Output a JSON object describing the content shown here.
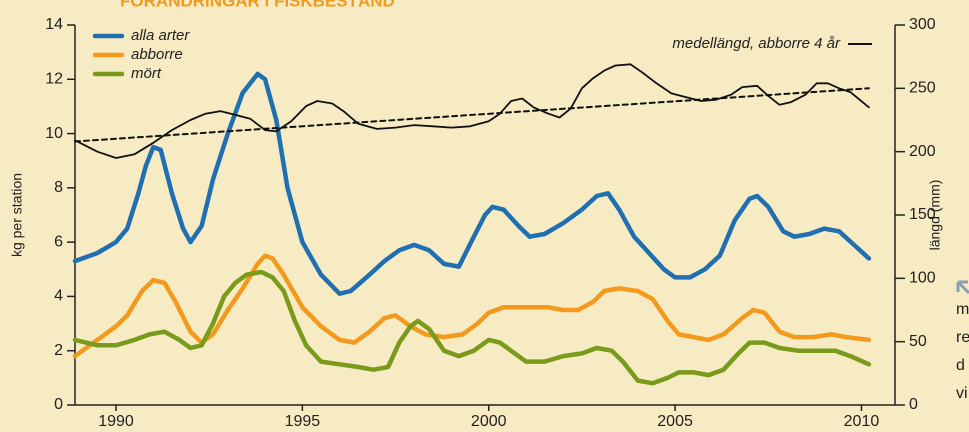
{
  "chart_data": {
    "type": "line",
    "title": "FÖRÄNDRINGAR I FISKBESTÅND",
    "y_label": "kg per station",
    "y2_label": "längd (mm)",
    "xlim": [
      1988.9,
      2010.9
    ],
    "xticks": [
      1990,
      1995,
      2000,
      2005,
      2010
    ],
    "ylim": [
      0,
      14
    ],
    "yticks": [
      0,
      2,
      4,
      6,
      8,
      10,
      12,
      14
    ],
    "y2lim": [
      0,
      300
    ],
    "y2ticks": [
      0,
      50,
      100,
      150,
      200,
      250,
      300
    ],
    "series": [
      {
        "name": "alla arter",
        "color": "#1f6fb2",
        "x": [
          1988.9,
          1989.5,
          1990,
          1990.3,
          1990.6,
          1990.8,
          1991,
          1991.2,
          1991.5,
          1991.8,
          1992,
          1992.3,
          1992.6,
          1993,
          1993.4,
          1993.8,
          1994,
          1994.3,
          1994.6,
          1995,
          1995.5,
          1996,
          1996.3,
          1996.8,
          1997.2,
          1997.6,
          1998,
          1998.4,
          1998.8,
          1999.2,
          1999.6,
          1999.9,
          2000.1,
          2000.4,
          2000.8,
          2001.1,
          2001.5,
          2002,
          2002.5,
          2002.9,
          2003.2,
          2003.5,
          2003.9,
          2004.3,
          2004.7,
          2005,
          2005.4,
          2005.8,
          2006.2,
          2006.6,
          2007,
          2007.2,
          2007.5,
          2007.9,
          2008.2,
          2008.6,
          2009,
          2009.4,
          2009.8,
          2010.2
        ],
        "values": [
          5.3,
          5.6,
          6.0,
          6.5,
          7.8,
          8.8,
          9.5,
          9.4,
          7.8,
          6.5,
          6.0,
          6.6,
          8.3,
          10.0,
          11.5,
          12.2,
          12.0,
          10.5,
          8.0,
          6.0,
          4.8,
          4.1,
          4.2,
          4.8,
          5.3,
          5.7,
          5.9,
          5.7,
          5.2,
          5.1,
          6.2,
          7.0,
          7.3,
          7.2,
          6.6,
          6.2,
          6.3,
          6.7,
          7.2,
          7.7,
          7.8,
          7.2,
          6.2,
          5.6,
          5.0,
          4.7,
          4.7,
          5.0,
          5.5,
          6.8,
          7.6,
          7.7,
          7.3,
          6.4,
          6.2,
          6.3,
          6.5,
          6.4,
          5.9,
          5.4
        ]
      },
      {
        "name": "abborre",
        "color": "#f39a1e",
        "x": [
          1988.9,
          1989.5,
          1990,
          1990.3,
          1990.7,
          1991,
          1991.3,
          1991.6,
          1992,
          1992.3,
          1992.6,
          1993,
          1993.4,
          1993.8,
          1994,
          1994.2,
          1994.5,
          1995,
          1995.5,
          1996,
          1996.4,
          1996.8,
          1997.2,
          1997.5,
          1997.9,
          1998.3,
          1998.8,
          1999.3,
          1999.7,
          2000,
          2000.4,
          2001,
          2001.6,
          2002,
          2002.4,
          2002.8,
          2003.1,
          2003.5,
          2004,
          2004.4,
          2004.8,
          2005.1,
          2005.5,
          2005.9,
          2006.3,
          2006.8,
          2007.1,
          2007.4,
          2007.8,
          2008.2,
          2008.7,
          2009.2,
          2009.6,
          2010.2
        ],
        "values": [
          1.8,
          2.4,
          2.9,
          3.3,
          4.2,
          4.6,
          4.5,
          3.8,
          2.7,
          2.3,
          2.6,
          3.5,
          4.3,
          5.2,
          5.5,
          5.4,
          4.8,
          3.6,
          2.9,
          2.4,
          2.3,
          2.7,
          3.2,
          3.3,
          2.9,
          2.6,
          2.5,
          2.6,
          3.0,
          3.4,
          3.6,
          3.6,
          3.6,
          3.5,
          3.5,
          3.8,
          4.2,
          4.3,
          4.2,
          3.9,
          3.1,
          2.6,
          2.5,
          2.4,
          2.6,
          3.2,
          3.5,
          3.4,
          2.7,
          2.5,
          2.5,
          2.6,
          2.5,
          2.4
        ]
      },
      {
        "name": "mört",
        "color": "#7a9a1c",
        "x": [
          1988.9,
          1989.5,
          1990,
          1990.5,
          1990.9,
          1991.3,
          1991.7,
          1992,
          1992.3,
          1992.6,
          1992.9,
          1993.2,
          1993.5,
          1993.9,
          1994.2,
          1994.5,
          1994.8,
          1995.1,
          1995.5,
          1996,
          1996.5,
          1996.9,
          1997.3,
          1997.6,
          1997.9,
          1998.1,
          1998.4,
          1998.8,
          1999.2,
          1999.6,
          2000,
          2000.3,
          2000.7,
          2001,
          2001.5,
          2002,
          2002.5,
          2002.9,
          2003.3,
          2003.6,
          2004,
          2004.4,
          2004.8,
          2005.1,
          2005.5,
          2005.9,
          2006.3,
          2006.7,
          2007,
          2007.4,
          2007.8,
          2008.3,
          2008.8,
          2009.3,
          2009.7,
          2010.2
        ],
        "values": [
          2.4,
          2.2,
          2.2,
          2.4,
          2.6,
          2.7,
          2.4,
          2.1,
          2.2,
          3.0,
          4.0,
          4.5,
          4.8,
          4.9,
          4.7,
          4.2,
          3.1,
          2.2,
          1.6,
          1.5,
          1.4,
          1.3,
          1.4,
          2.3,
          2.9,
          3.1,
          2.8,
          2.0,
          1.8,
          2.0,
          2.4,
          2.3,
          1.9,
          1.6,
          1.6,
          1.8,
          1.9,
          2.1,
          2.0,
          1.6,
          0.9,
          0.8,
          1.0,
          1.2,
          1.2,
          1.1,
          1.3,
          1.9,
          2.3,
          2.3,
          2.1,
          2.0,
          2.0,
          2.0,
          1.8,
          1.5
        ]
      },
      {
        "name": "medellängd, abborre 4 år",
        "color": "#111111",
        "axis": "y2",
        "x": [
          1988.9,
          1989.5,
          1990,
          1990.5,
          1991,
          1991.5,
          1992,
          1992.4,
          1992.8,
          1993.2,
          1993.6,
          1994,
          1994.3,
          1994.7,
          1995.1,
          1995.4,
          1995.8,
          1996.1,
          1996.5,
          1997,
          1997.5,
          1998,
          1998.5,
          1999,
          1999.5,
          2000,
          2000.3,
          2000.6,
          2000.9,
          2001.2,
          2001.6,
          2001.9,
          2002.2,
          2002.5,
          2002.8,
          2003.1,
          2003.4,
          2003.8,
          2004.1,
          2004.5,
          2004.9,
          2005.3,
          2005.7,
          2006.1,
          2006.5,
          2006.8,
          2007.2,
          2007.5,
          2007.8,
          2008.1,
          2008.5,
          2008.8,
          2009.1,
          2009.4,
          2009.7,
          2010.2
        ],
        "values": [
          209,
          200,
          195,
          198,
          207,
          217,
          225,
          230,
          232,
          229,
          226,
          217,
          216,
          224,
          236,
          240,
          238,
          232,
          222,
          218,
          219,
          221,
          220,
          219,
          220,
          224,
          230,
          240,
          242,
          235,
          230,
          227,
          234,
          250,
          258,
          264,
          268,
          269,
          263,
          254,
          246,
          243,
          240,
          241,
          245,
          251,
          252,
          244,
          237,
          239,
          245,
          254,
          254,
          250,
          247,
          235
        ]
      },
      {
        "color": "#111111",
        "axis": "y2",
        "dashed": true,
        "x": [
          1988.9,
          2010.2
        ],
        "values": [
          208,
          250
        ]
      }
    ]
  },
  "side_note": {
    "lines": [
      "m",
      "re",
      "d",
      "vi"
    ]
  }
}
